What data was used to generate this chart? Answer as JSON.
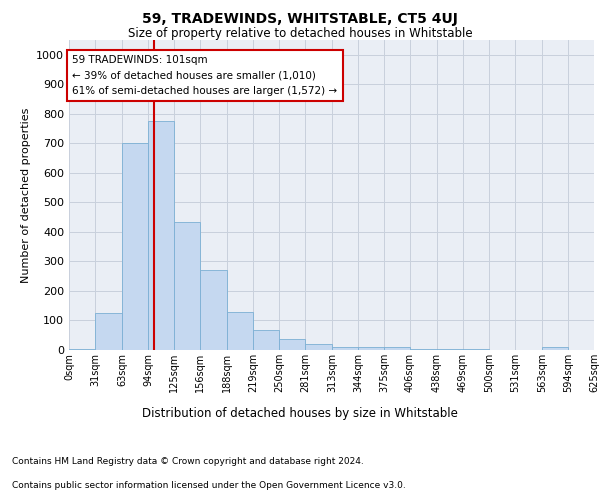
{
  "title": "59, TRADEWINDS, WHITSTABLE, CT5 4UJ",
  "subtitle": "Size of property relative to detached houses in Whitstable",
  "xlabel": "Distribution of detached houses by size in Whitstable",
  "ylabel": "Number of detached properties",
  "footnote1": "Contains HM Land Registry data © Crown copyright and database right 2024.",
  "footnote2": "Contains public sector information licensed under the Open Government Licence v3.0.",
  "bar_color": "#c5d8f0",
  "bar_edge_color": "#7bafd4",
  "grid_color": "#c8d0dc",
  "background_color": "#eaeef5",
  "property_size": 101,
  "property_label": "59 TRADEWINDS: 101sqm",
  "annotation_line1": "← 39% of detached houses are smaller (1,010)",
  "annotation_line2": "61% of semi-detached houses are larger (1,572) →",
  "red_line_color": "#cc0000",
  "annotation_box_color": "#ffffff",
  "annotation_box_edge": "#cc0000",
  "bins": [
    0,
    31,
    63,
    94,
    125,
    156,
    188,
    219,
    250,
    281,
    313,
    344,
    375,
    406,
    438,
    469,
    500,
    531,
    563,
    594,
    625
  ],
  "bin_labels": [
    "0sqm",
    "31sqm",
    "63sqm",
    "94sqm",
    "125sqm",
    "156sqm",
    "188sqm",
    "219sqm",
    "250sqm",
    "281sqm",
    "313sqm",
    "344sqm",
    "375sqm",
    "406sqm",
    "438sqm",
    "469sqm",
    "500sqm",
    "531sqm",
    "563sqm",
    "594sqm",
    "625sqm"
  ],
  "counts": [
    5,
    125,
    700,
    775,
    435,
    270,
    130,
    68,
    37,
    22,
    10,
    10,
    10,
    5,
    5,
    5,
    0,
    0,
    10,
    0,
    0
  ],
  "ylim": [
    0,
    1050
  ],
  "yticks": [
    0,
    100,
    200,
    300,
    400,
    500,
    600,
    700,
    800,
    900,
    1000
  ]
}
